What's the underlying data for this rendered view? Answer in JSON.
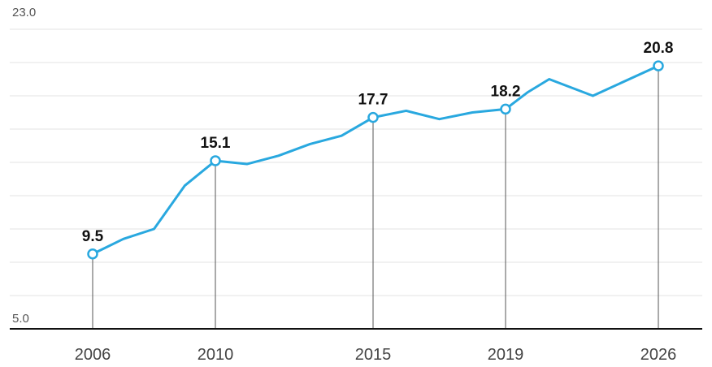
{
  "chart_data": {
    "type": "line",
    "title": "",
    "xlabel": "",
    "ylabel": "",
    "ylim": [
      5.0,
      23.0
    ],
    "y_tick_labels": [
      "23.0",
      "5.0"
    ],
    "x_tick_labels": [
      "2006",
      "2010",
      "2015",
      "2019",
      "2026"
    ],
    "grid": true,
    "series": [
      {
        "color": "#29a8df",
        "points": [
          {
            "x": 2006,
            "y": 9.5
          },
          {
            "x": 2007,
            "y": 10.4
          },
          {
            "x": 2008,
            "y": 11.0
          },
          {
            "x": 2009,
            "y": 13.6
          },
          {
            "x": 2010,
            "y": 15.1
          },
          {
            "x": 2011,
            "y": 14.9
          },
          {
            "x": 2012,
            "y": 15.4
          },
          {
            "x": 2013,
            "y": 16.1
          },
          {
            "x": 2014,
            "y": 16.6
          },
          {
            "x": 2015,
            "y": 17.7
          },
          {
            "x": 2016,
            "y": 18.1
          },
          {
            "x": 2017,
            "y": 17.6
          },
          {
            "x": 2018,
            "y": 18.0
          },
          {
            "x": 2019,
            "y": 18.2
          },
          {
            "x": 2020,
            "y": 19.2
          },
          {
            "x": 2021,
            "y": 20.0
          },
          {
            "x": 2023,
            "y": 19.0
          },
          {
            "x": 2026,
            "y": 20.8
          }
        ]
      }
    ],
    "labeled_points": [
      {
        "x": 2006,
        "y": 9.5,
        "label": "9.5"
      },
      {
        "x": 2010,
        "y": 15.1,
        "label": "15.1"
      },
      {
        "x": 2015,
        "y": 17.7,
        "label": "17.7"
      },
      {
        "x": 2019,
        "y": 18.2,
        "label": "18.2"
      },
      {
        "x": 2026,
        "y": 20.8,
        "label": "20.8"
      }
    ]
  }
}
